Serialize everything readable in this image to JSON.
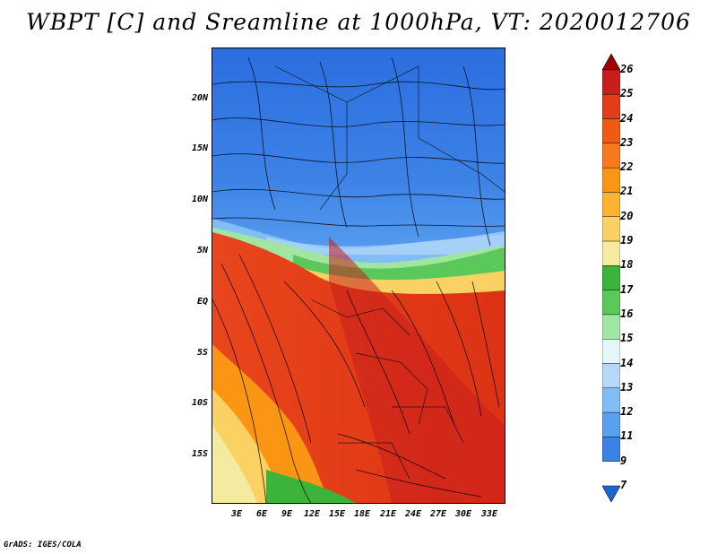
{
  "title": "WBPT [C] and Sreamline at 1000hPa, VT: 2020012706",
  "footer": "GrADS: IGES/COLA",
  "map": {
    "lat_labels": [
      "20N",
      "15N",
      "10N",
      "5N",
      "EQ",
      "5S",
      "10S",
      "15S"
    ],
    "lon_labels": [
      "3E",
      "6E",
      "9E",
      "12E",
      "15E",
      "18E",
      "21E",
      "24E",
      "27E",
      "30E",
      "33E"
    ]
  },
  "colorbar": {
    "labels": [
      "26",
      "25",
      "24",
      "23",
      "22",
      "21",
      "20",
      "19",
      "18",
      "17",
      "16",
      "15",
      "14",
      "13",
      "12",
      "11",
      "9",
      "7"
    ],
    "colors": [
      "#a00000",
      "#c81e1e",
      "#e23c18",
      "#f05a14",
      "#f8781e",
      "#fa9614",
      "#fab432",
      "#fad264",
      "#f5eba0",
      "#3cb43c",
      "#5ac85a",
      "#a0e6a0",
      "#e6f5fa",
      "#b4d7fa",
      "#82bef5",
      "#5aa0f0",
      "#3c82e6",
      "#1e64d2"
    ]
  }
}
